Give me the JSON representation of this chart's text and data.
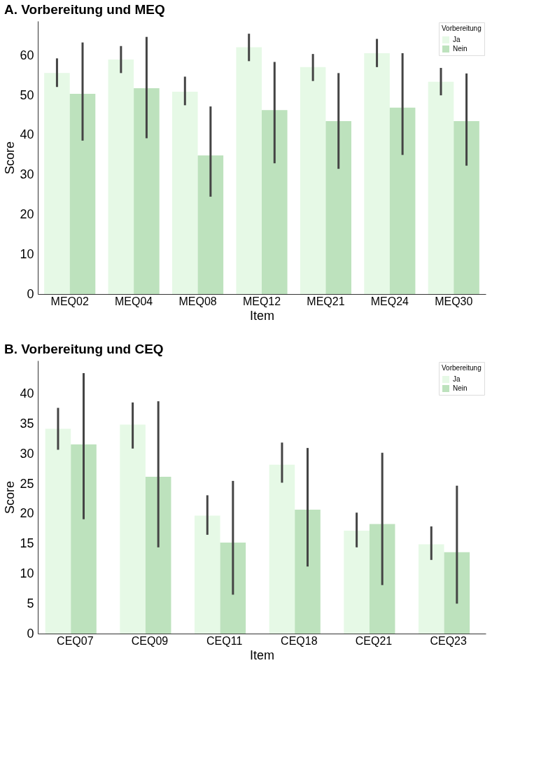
{
  "chart_data": [
    {
      "type": "bar",
      "title": "A. Vorbereitung und MEQ",
      "xlabel": "Item",
      "ylabel": "Score",
      "legend_title": "Vorbereitung",
      "legend": "top right",
      "grid": false,
      "categories": [
        "MEQ02",
        "MEQ04",
        "MEQ08",
        "MEQ12",
        "MEQ21",
        "MEQ24",
        "MEQ30"
      ],
      "ylim": [
        0,
        68.7
      ],
      "yticks": [
        0,
        10,
        20,
        30,
        40,
        50,
        60
      ],
      "series": [
        {
          "name": "Ja",
          "color": "#e6f9e6",
          "values": [
            55.6,
            59.0,
            50.9,
            62.1,
            57.1,
            60.6,
            53.4
          ],
          "errors": [
            [
              52.1,
              59.3
            ],
            [
              55.6,
              62.4
            ],
            [
              47.5,
              54.7
            ],
            [
              58.6,
              65.5
            ],
            [
              53.6,
              60.4
            ],
            [
              57.1,
              64.2
            ],
            [
              50.0,
              56.9
            ]
          ]
        },
        {
          "name": "Nein",
          "color": "#bde2bd",
          "values": [
            50.4,
            51.8,
            34.9,
            46.3,
            43.5,
            46.9,
            43.5
          ],
          "errors": [
            [
              38.6,
              63.3
            ],
            [
              39.2,
              64.7
            ],
            [
              24.5,
              47.2
            ],
            [
              32.9,
              58.4
            ],
            [
              31.5,
              55.6
            ],
            [
              35.0,
              60.6
            ],
            [
              32.3,
              55.5
            ]
          ]
        }
      ]
    },
    {
      "type": "bar",
      "title": "B. Vorbereitung und CEQ",
      "xlabel": "Item",
      "ylabel": "Score",
      "legend_title": "Vorbereitung",
      "legend": "top right",
      "grid": false,
      "categories": [
        "CEQ07",
        "CEQ09",
        "CEQ11",
        "CEQ18",
        "CEQ21",
        "CEQ23"
      ],
      "ylim": [
        0,
        45.6
      ],
      "yticks": [
        0,
        5,
        10,
        15,
        20,
        25,
        30,
        35,
        40
      ],
      "series": [
        {
          "name": "Ja",
          "color": "#e6f9e6",
          "values": [
            34.2,
            34.9,
            19.7,
            28.2,
            17.2,
            14.9
          ],
          "errors": [
            [
              30.7,
              37.7
            ],
            [
              30.9,
              38.6
            ],
            [
              16.5,
              23.1
            ],
            [
              25.2,
              31.9
            ],
            [
              14.4,
              20.2
            ],
            [
              12.3,
              17.9
            ]
          ]
        },
        {
          "name": "Nein",
          "color": "#bde2bd",
          "values": [
            31.6,
            26.2,
            15.2,
            20.7,
            18.3,
            13.6
          ],
          "errors": [
            [
              19.1,
              43.5
            ],
            [
              14.4,
              38.8
            ],
            [
              6.5,
              25.5
            ],
            [
              11.2,
              31.0
            ],
            [
              8.1,
              30.2
            ],
            [
              5.0,
              24.7
            ]
          ]
        }
      ]
    }
  ]
}
